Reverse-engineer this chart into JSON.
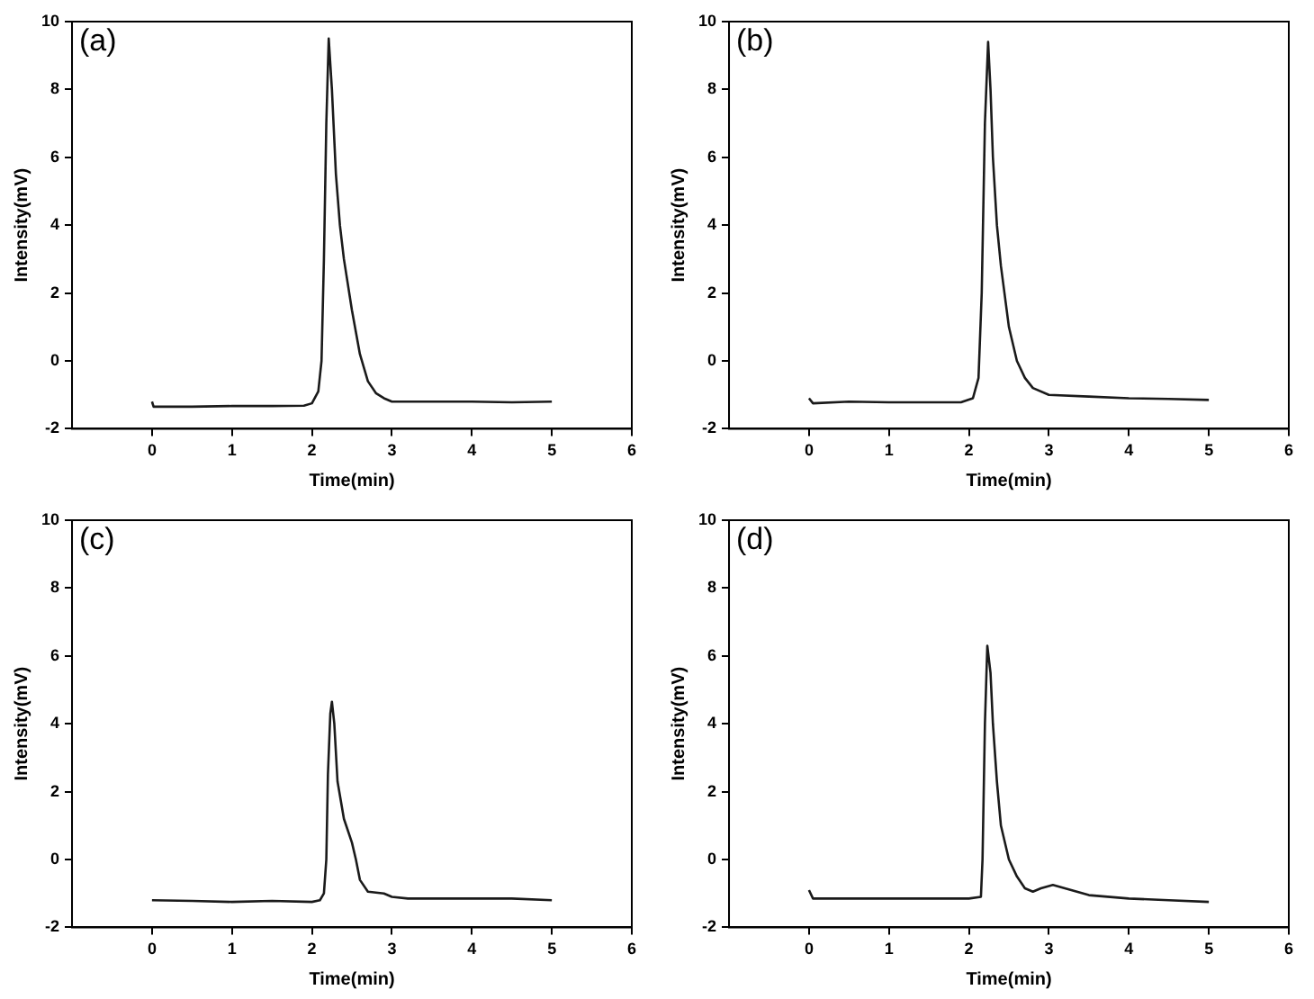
{
  "chart_data": [
    {
      "type": "line",
      "title": "(a)",
      "xlabel": "Time(min)",
      "ylabel": "Intensity(mV)",
      "xlim": [
        -1,
        6
      ],
      "xticks": [
        0,
        1,
        2,
        3,
        4,
        5,
        6
      ],
      "ylim": [
        -2,
        10
      ],
      "yticks": [
        -2,
        0,
        2,
        4,
        6,
        8,
        10
      ],
      "series": [
        {
          "color": "#1a1a1a",
          "x": [
            0,
            0.02,
            0.5,
            1,
            1.5,
            1.9,
            2.0,
            2.08,
            2.12,
            2.15,
            2.18,
            2.21,
            2.25,
            2.3,
            2.35,
            2.4,
            2.5,
            2.6,
            2.7,
            2.8,
            2.9,
            3.0,
            3.5,
            4,
            4.5,
            5
          ],
          "values": [
            -1.2,
            -1.35,
            -1.35,
            -1.33,
            -1.33,
            -1.32,
            -1.25,
            -0.9,
            0,
            3,
            7,
            9.5,
            8,
            5.5,
            4,
            3,
            1.5,
            0.2,
            -0.6,
            -0.95,
            -1.1,
            -1.2,
            -1.2,
            -1.2,
            -1.22,
            -1.2
          ]
        }
      ]
    },
    {
      "type": "line",
      "title": "(b)",
      "xlabel": "Time(min)",
      "ylabel": "Intensity(mV)",
      "xlim": [
        -1,
        6
      ],
      "xticks": [
        0,
        1,
        2,
        3,
        4,
        5,
        6
      ],
      "ylim": [
        -2,
        10
      ],
      "yticks": [
        -2,
        0,
        2,
        4,
        6,
        8,
        10
      ],
      "series": [
        {
          "color": "#1a1a1a",
          "x": [
            0,
            0.05,
            0.5,
            1,
            1.5,
            1.9,
            2.05,
            2.12,
            2.16,
            2.2,
            2.24,
            2.27,
            2.3,
            2.35,
            2.4,
            2.5,
            2.6,
            2.7,
            2.8,
            3,
            3.5,
            4,
            4.5,
            5
          ],
          "values": [
            -1.1,
            -1.25,
            -1.2,
            -1.22,
            -1.22,
            -1.22,
            -1.1,
            -0.5,
            2,
            7,
            9.4,
            8,
            6,
            4,
            2.8,
            1,
            0,
            -0.5,
            -0.8,
            -1.0,
            -1.05,
            -1.1,
            -1.12,
            -1.15
          ]
        }
      ]
    },
    {
      "type": "line",
      "title": "(c)",
      "xlabel": "Time(min)",
      "ylabel": "Intensity(mV)",
      "xlim": [
        -1,
        6
      ],
      "xticks": [
        0,
        1,
        2,
        3,
        4,
        5,
        6
      ],
      "ylim": [
        -2,
        10
      ],
      "yticks": [
        -2,
        0,
        2,
        4,
        6,
        8,
        10
      ],
      "series": [
        {
          "color": "#1a1a1a",
          "x": [
            0,
            0.5,
            1,
            1.5,
            2.0,
            2.1,
            2.15,
            2.18,
            2.2,
            2.23,
            2.25,
            2.28,
            2.32,
            2.4,
            2.5,
            2.55,
            2.6,
            2.7,
            2.9,
            3.0,
            3.2,
            4,
            4.5,
            5
          ],
          "values": [
            -1.2,
            -1.22,
            -1.25,
            -1.22,
            -1.25,
            -1.2,
            -1,
            0,
            2.5,
            4.3,
            4.65,
            4,
            2.3,
            1.2,
            0.5,
            0,
            -0.6,
            -0.95,
            -1.0,
            -1.1,
            -1.15,
            -1.15,
            -1.15,
            -1.2
          ]
        }
      ]
    },
    {
      "type": "line",
      "title": "(d)",
      "xlabel": "Time(min)",
      "ylabel": "Intensity(mV)",
      "xlim": [
        -1,
        6
      ],
      "xticks": [
        0,
        1,
        2,
        3,
        4,
        5,
        6
      ],
      "ylim": [
        -2,
        10
      ],
      "yticks": [
        -2,
        0,
        2,
        4,
        6,
        8,
        10
      ],
      "series": [
        {
          "color": "#1a1a1a",
          "x": [
            0,
            0.05,
            0.5,
            1,
            1.5,
            2.0,
            2.15,
            2.17,
            2.2,
            2.23,
            2.27,
            2.3,
            2.35,
            2.4,
            2.5,
            2.6,
            2.7,
            2.8,
            2.9,
            3.05,
            3.2,
            3.5,
            4,
            4.5,
            5
          ],
          "values": [
            -0.9,
            -1.15,
            -1.15,
            -1.15,
            -1.15,
            -1.15,
            -1.1,
            0,
            4,
            6.3,
            5.5,
            4,
            2.3,
            1,
            0,
            -0.5,
            -0.85,
            -0.95,
            -0.85,
            -0.75,
            -0.85,
            -1.05,
            -1.15,
            -1.2,
            -1.25
          ]
        }
      ]
    }
  ]
}
